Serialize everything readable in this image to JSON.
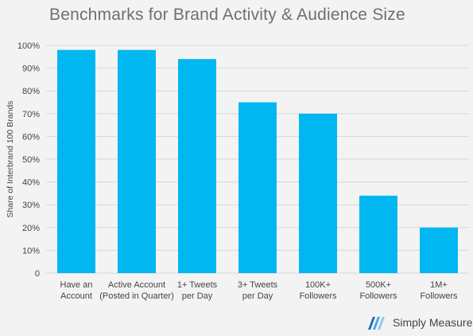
{
  "title": "Benchmarks for Brand Activity & Audience Size",
  "brand": {
    "name": "Simply Measured",
    "logo_icon": "simply-measured-logo-icon"
  },
  "colors": {
    "bar": "#00b7f1",
    "grid": "#d7d7d7",
    "text": "#444444",
    "background": "#f3f3f3"
  },
  "chart_data": {
    "type": "bar",
    "categories": [
      [
        "Have an",
        "Account"
      ],
      [
        "Active Account",
        "(Posted in Quarter)"
      ],
      [
        "1+ Tweets",
        "per Day"
      ],
      [
        "3+ Tweets",
        "per Day"
      ],
      [
        "100K+",
        "Followers"
      ],
      [
        "500K+",
        "Followers"
      ],
      [
        "1M+",
        "Followers"
      ]
    ],
    "values": [
      98,
      98,
      94,
      75,
      70,
      34,
      20
    ],
    "ylabel": "Share of Interbrand 100 Brands",
    "ylim": [
      0,
      100
    ],
    "yticks": [
      0,
      10,
      20,
      30,
      40,
      50,
      60,
      70,
      80,
      90,
      100
    ],
    "ytick_labels": [
      "0",
      "10%",
      "20%",
      "30%",
      "40%",
      "50%",
      "60%",
      "70%",
      "80%",
      "90%",
      "100%"
    ],
    "grid": true,
    "legend": "none"
  }
}
